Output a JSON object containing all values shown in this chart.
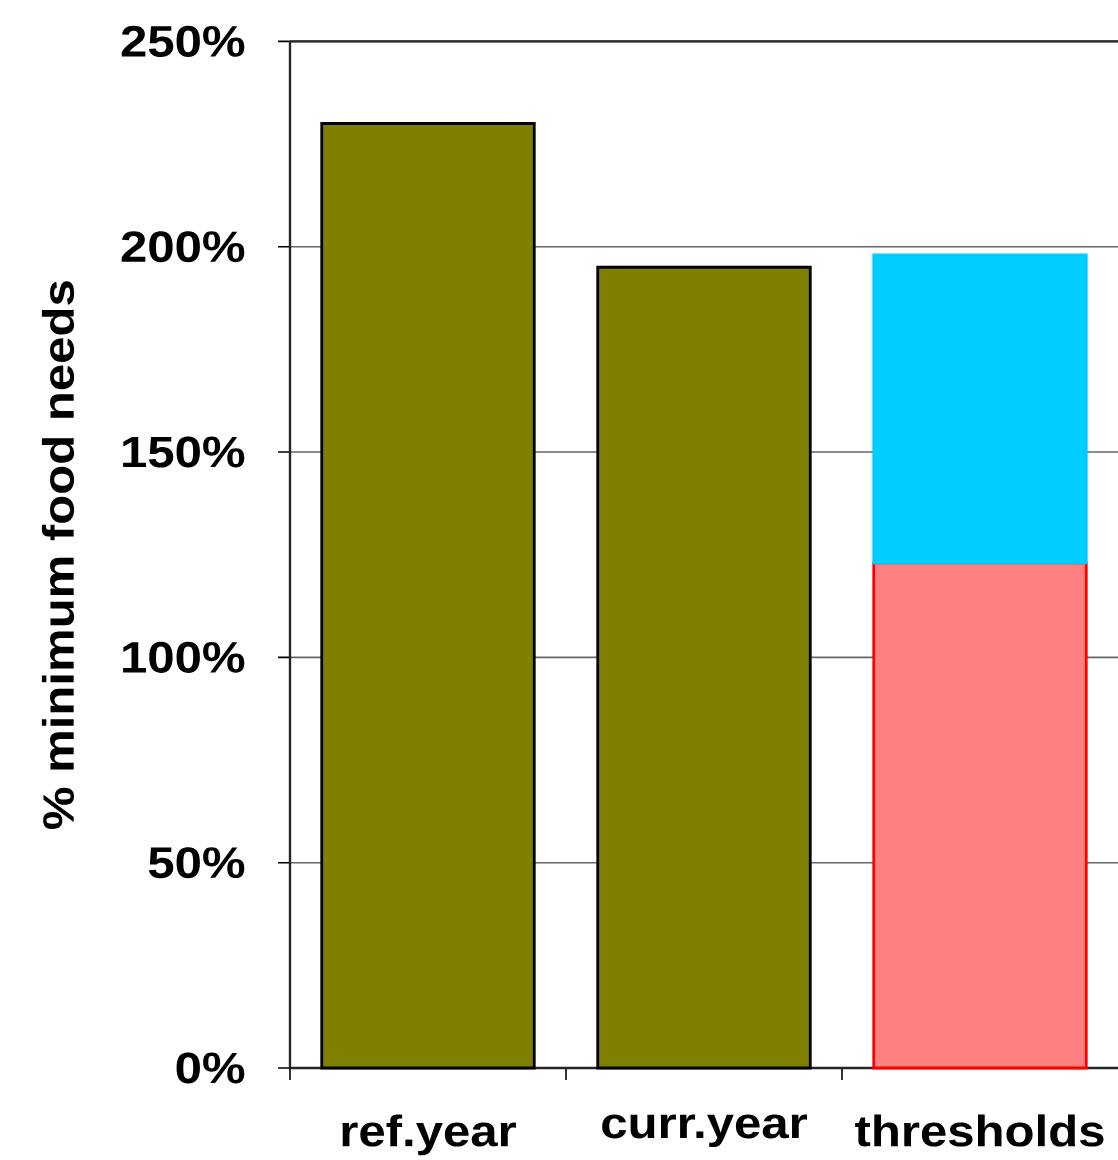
{
  "chart_data": {
    "type": "bar",
    "ylabel": "% minimum food needs",
    "categories": [
      "ref.year",
      "curr.year",
      "thresholds"
    ],
    "series": [
      {
        "color": "#808000",
        "values": [
          230,
          195,
          null
        ]
      },
      {
        "color": "#ff8080",
        "values": [
          null,
          null,
          123
        ]
      },
      {
        "color": "#00ccff",
        "values": [
          null,
          null,
          75
        ]
      }
    ],
    "stacked": true,
    "ylim": [
      0,
      250
    ],
    "yticks": [
      {
        "value": 0,
        "label": "0%"
      },
      {
        "value": 50,
        "label": "50%"
      },
      {
        "value": 100,
        "label": "100%"
      },
      {
        "value": 150,
        "label": "150%"
      },
      {
        "value": 200,
        "label": "200%"
      },
      {
        "value": 250,
        "label": "250%"
      }
    ],
    "grid": "y"
  }
}
